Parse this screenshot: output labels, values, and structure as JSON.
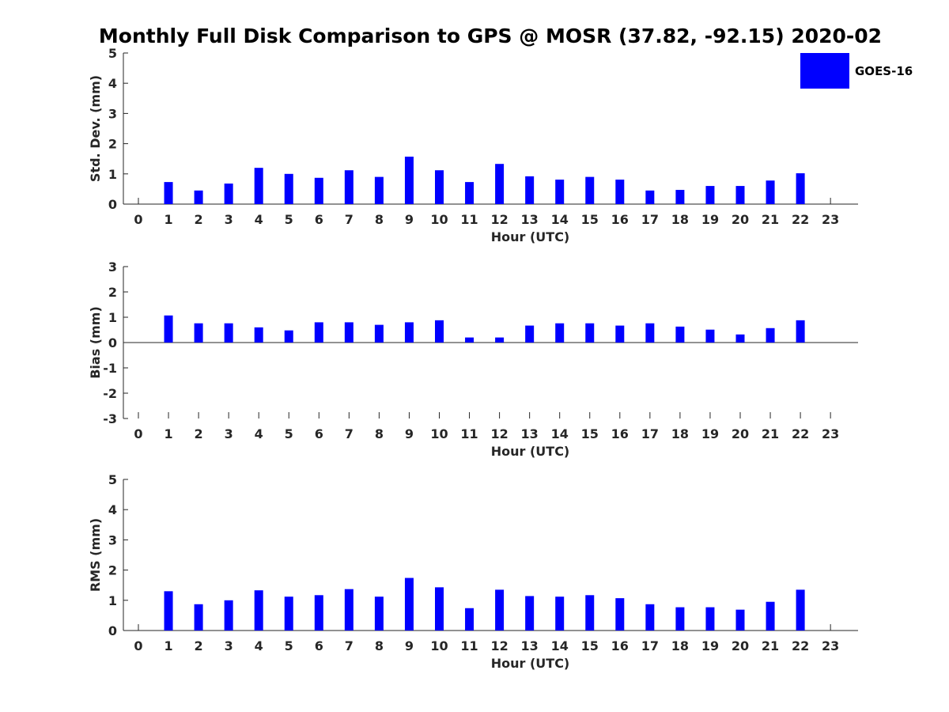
{
  "title": "Monthly Full Disk Comparison to GPS @ MOSR (37.82, -92.15) 2020-02",
  "legend": {
    "label": "GOES-16",
    "color": "#0000ff"
  },
  "chart_data": [
    {
      "type": "bar",
      "name": "std-dev",
      "xlabel": "Hour (UTC)",
      "ylabel": "Std. Dev. (mm)",
      "ylim": [
        0,
        5
      ],
      "yticks": [
        "0",
        "1",
        "2",
        "3",
        "4",
        "5"
      ],
      "categories": [
        "0",
        "1",
        "2",
        "3",
        "4",
        "5",
        "6",
        "7",
        "8",
        "9",
        "10",
        "11",
        "12",
        "13",
        "14",
        "15",
        "16",
        "17",
        "18",
        "19",
        "20",
        "21",
        "22",
        "23"
      ],
      "series": [
        {
          "name": "GOES-16",
          "values": [
            null,
            0.73,
            0.45,
            0.68,
            1.2,
            1.0,
            0.87,
            1.12,
            0.9,
            1.57,
            1.12,
            0.73,
            1.33,
            0.92,
            0.81,
            0.9,
            0.81,
            0.45,
            0.47,
            0.6,
            0.6,
            0.78,
            1.02,
            null
          ]
        }
      ]
    },
    {
      "type": "bar",
      "name": "bias",
      "xlabel": "Hour (UTC)",
      "ylabel": "Bias (mm)",
      "ylim": [
        -3,
        3
      ],
      "yticks": [
        "-3",
        "-2",
        "-1",
        "0",
        "1",
        "2",
        "3"
      ],
      "categories": [
        "0",
        "1",
        "2",
        "3",
        "4",
        "5",
        "6",
        "7",
        "8",
        "9",
        "10",
        "11",
        "12",
        "13",
        "14",
        "15",
        "16",
        "17",
        "18",
        "19",
        "20",
        "21",
        "22",
        "23"
      ],
      "series": [
        {
          "name": "GOES-16",
          "values": [
            null,
            1.07,
            0.76,
            0.76,
            0.6,
            0.48,
            0.8,
            0.8,
            0.7,
            0.8,
            0.88,
            0.2,
            0.2,
            0.67,
            0.76,
            0.76,
            0.67,
            0.76,
            0.63,
            0.51,
            0.32,
            0.57,
            0.88,
            null
          ]
        }
      ]
    },
    {
      "type": "bar",
      "name": "rms",
      "xlabel": "Hour (UTC)",
      "ylabel": "RMS (mm)",
      "ylim": [
        0,
        5
      ],
      "yticks": [
        "0",
        "1",
        "2",
        "3",
        "4",
        "5"
      ],
      "categories": [
        "0",
        "1",
        "2",
        "3",
        "4",
        "5",
        "6",
        "7",
        "8",
        "9",
        "10",
        "11",
        "12",
        "13",
        "14",
        "15",
        "16",
        "17",
        "18",
        "19",
        "20",
        "21",
        "22",
        "23"
      ],
      "series": [
        {
          "name": "GOES-16",
          "values": [
            null,
            1.3,
            0.87,
            1.0,
            1.33,
            1.12,
            1.17,
            1.37,
            1.12,
            1.74,
            1.43,
            0.74,
            1.35,
            1.14,
            1.12,
            1.17,
            1.07,
            0.87,
            0.77,
            0.77,
            0.69,
            0.95,
            1.35,
            null
          ]
        }
      ]
    }
  ]
}
